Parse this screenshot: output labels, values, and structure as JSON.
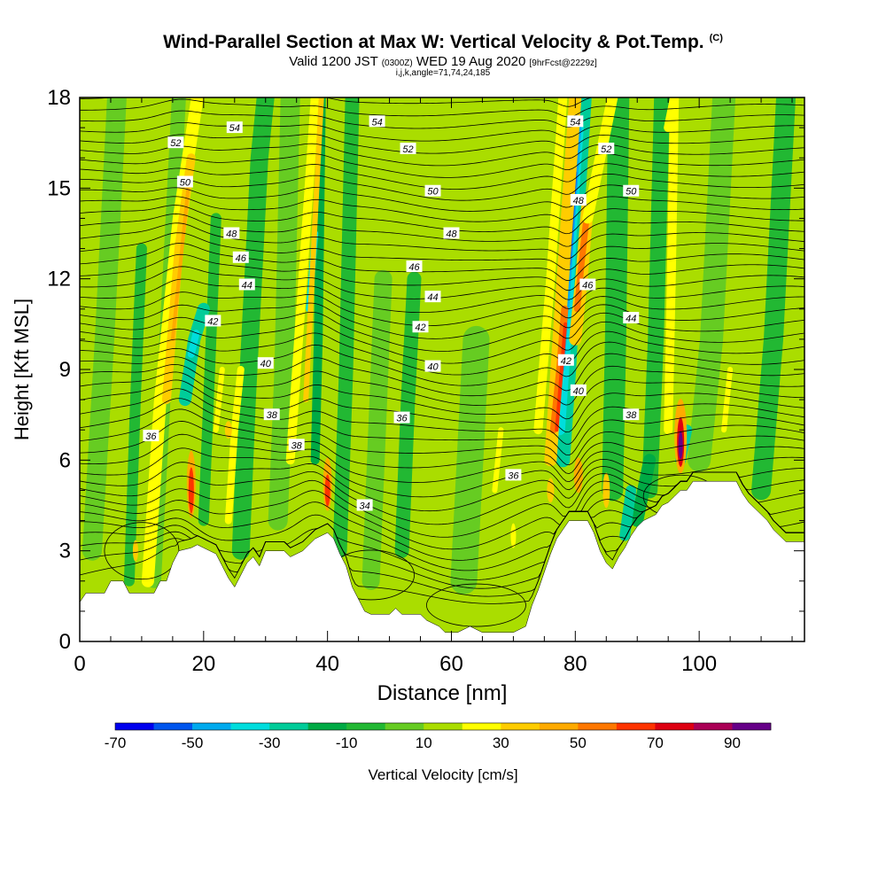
{
  "title": "Wind-Parallel Section at Max W: Vertical Velocity & Pot.Temp.",
  "copyright": "(C)",
  "subtitle": {
    "valid": "Valid 1200 JST",
    "utc": "(0300Z)",
    "date": "WED 19 Aug 2020",
    "fcst": "[9hrFcst@2229z]"
  },
  "ijk": "i,j,k,angle=71,74,24,185",
  "chart_data": {
    "type": "heatmap",
    "xlabel": "Distance [nm]",
    "ylabel": "Height [Kft MSL]",
    "xlim": [
      0,
      117
    ],
    "ylim": [
      0,
      18
    ],
    "x_ticks": [
      0,
      20,
      40,
      60,
      80,
      100
    ],
    "y_ticks": [
      0,
      3,
      6,
      9,
      12,
      15,
      18
    ],
    "colorbar": {
      "label": "Vertical Velocity [cm/s]",
      "tick_labels": [
        "-70",
        "-50",
        "-30",
        "-10",
        "10",
        "30",
        "50",
        "70",
        "90"
      ],
      "levels": [
        -70,
        -60,
        -50,
        -40,
        -30,
        -20,
        -10,
        0,
        10,
        20,
        30,
        40,
        50,
        60,
        70,
        80,
        90,
        100
      ],
      "colors": [
        "#0000ee",
        "#0055ee",
        "#00aaee",
        "#00dddd",
        "#00cc99",
        "#00aa44",
        "#22b833",
        "#66cc22",
        "#aadd00",
        "#ffff00",
        "#ffcc00",
        "#ffaa00",
        "#ff7700",
        "#ff3300",
        "#dd0011",
        "#aa0055",
        "#660088"
      ]
    },
    "isentrope_labels": [
      {
        "x": 25,
        "y": 17.0,
        "text": "54"
      },
      {
        "x": 48,
        "y": 17.2,
        "text": "54"
      },
      {
        "x": 80,
        "y": 17.2,
        "text": "54"
      },
      {
        "x": 15.5,
        "y": 16.5,
        "text": "52"
      },
      {
        "x": 53,
        "y": 16.3,
        "text": "52"
      },
      {
        "x": 85,
        "y": 16.3,
        "text": "52"
      },
      {
        "x": 17,
        "y": 15.2,
        "text": "50"
      },
      {
        "x": 57,
        "y": 14.9,
        "text": "50"
      },
      {
        "x": 89,
        "y": 14.9,
        "text": "50"
      },
      {
        "x": 24.5,
        "y": 13.5,
        "text": "48"
      },
      {
        "x": 60,
        "y": 13.5,
        "text": "48"
      },
      {
        "x": 80.5,
        "y": 14.6,
        "text": "48"
      },
      {
        "x": 26,
        "y": 12.7,
        "text": "46"
      },
      {
        "x": 54,
        "y": 12.4,
        "text": "46"
      },
      {
        "x": 82,
        "y": 11.8,
        "text": "46"
      },
      {
        "x": 27,
        "y": 11.8,
        "text": "44"
      },
      {
        "x": 57,
        "y": 11.4,
        "text": "44"
      },
      {
        "x": 89,
        "y": 10.7,
        "text": "44"
      },
      {
        "x": 21.5,
        "y": 10.6,
        "text": "42"
      },
      {
        "x": 55,
        "y": 10.4,
        "text": "42"
      },
      {
        "x": 78.5,
        "y": 9.3,
        "text": "42"
      },
      {
        "x": 30,
        "y": 9.2,
        "text": "40"
      },
      {
        "x": 57,
        "y": 9.1,
        "text": "40"
      },
      {
        "x": 80.5,
        "y": 8.3,
        "text": "40"
      },
      {
        "x": 31,
        "y": 7.5,
        "text": "38"
      },
      {
        "x": 35,
        "y": 6.5,
        "text": "38"
      },
      {
        "x": 89,
        "y": 7.5,
        "text": "38"
      },
      {
        "x": 11.5,
        "y": 6.8,
        "text": "36"
      },
      {
        "x": 52,
        "y": 7.4,
        "text": "36"
      },
      {
        "x": 70,
        "y": 5.5,
        "text": "36"
      },
      {
        "x": 46,
        "y": 4.5,
        "text": "34"
      }
    ]
  }
}
